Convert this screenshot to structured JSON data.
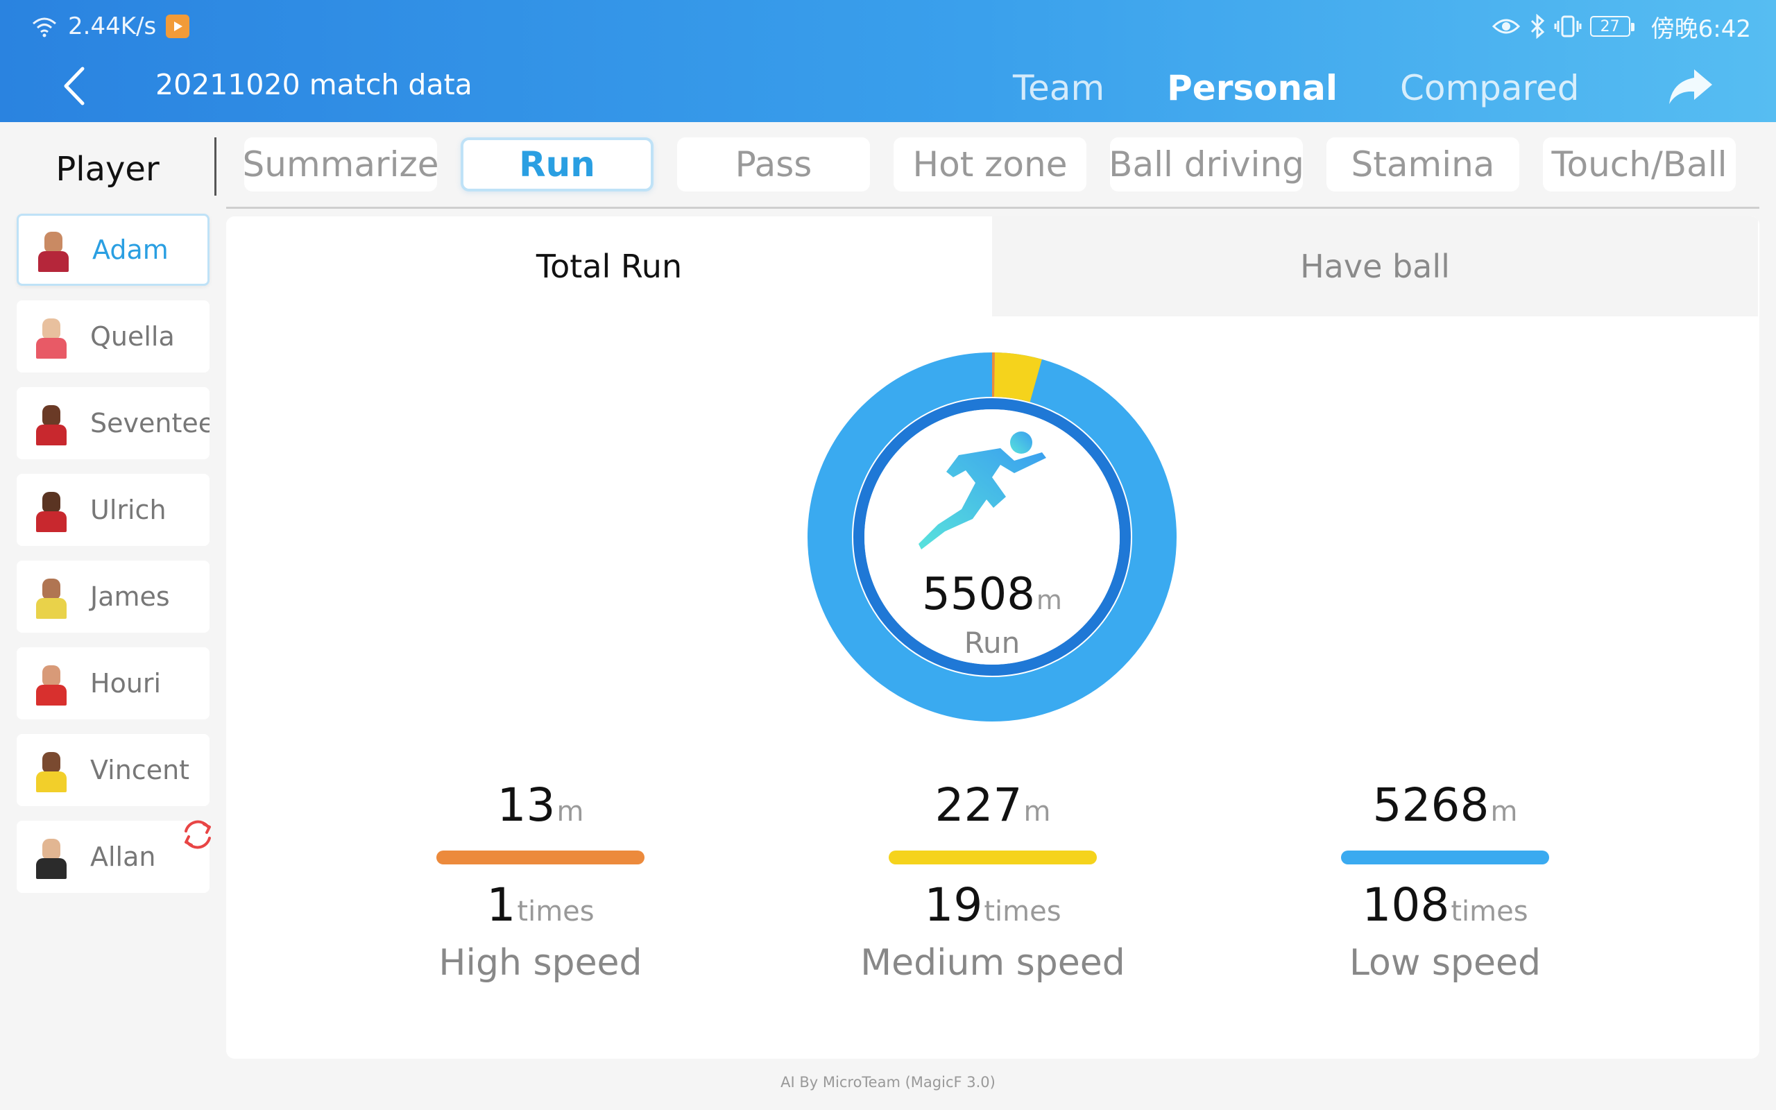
{
  "status_bar": {
    "network_speed": "2.44K/s",
    "battery": "27",
    "time": "傍晚6:42"
  },
  "header": {
    "title": "20211020 match data",
    "tabs": [
      "Team",
      "Personal",
      "Compared"
    ],
    "active_tab": "Personal"
  },
  "player_header": "Player",
  "players": [
    {
      "name": "Adam",
      "active": true,
      "shirt": "#b5263a",
      "skin": "#c98a63"
    },
    {
      "name": "Quella",
      "active": false,
      "shirt": "#e85a66",
      "skin": "#e8c09e"
    },
    {
      "name": "Seventee",
      "active": false,
      "shirt": "#c8282e",
      "skin": "#6a3a26"
    },
    {
      "name": "Ulrich",
      "active": false,
      "shirt": "#c8282e",
      "skin": "#5a3422"
    },
    {
      "name": "James",
      "active": false,
      "shirt": "#e9d24a",
      "skin": "#b07552"
    },
    {
      "name": "Houri",
      "active": false,
      "shirt": "#d8302e",
      "skin": "#d89a78"
    },
    {
      "name": "Vincent",
      "active": false,
      "shirt": "#f2cf2a",
      "skin": "#7a4a30"
    },
    {
      "name": "Allan",
      "active": false,
      "shirt": "#2b2b2b",
      "skin": "#e2b692"
    }
  ],
  "categories": [
    "Summarize",
    "Run",
    "Pass",
    "Hot zone",
    "Ball driving",
    "Stamina",
    "Touch/Ball"
  ],
  "active_category": "Run",
  "sub_tabs": {
    "active": "Total Run",
    "inactive": "Have ball"
  },
  "total_run": {
    "value": "5508",
    "unit": "m",
    "label": "Run"
  },
  "speeds": [
    {
      "distance": "13",
      "distance_unit": "m",
      "times": "1",
      "times_unit": "times",
      "label": "High speed",
      "color": "#ec8a3c"
    },
    {
      "distance": "227",
      "distance_unit": "m",
      "times": "19",
      "times_unit": "times",
      "label": "Medium speed",
      "color": "#f5d31c"
    },
    {
      "distance": "5268",
      "distance_unit": "m",
      "times": "108",
      "times_unit": "times",
      "label": "Low speed",
      "color": "#3aaaf0"
    }
  ],
  "colors": {
    "accent": "#2a9fe2",
    "header_start": "#2a83e0",
    "header_end": "#56bdf2",
    "ring_outer": "#3aaaf0",
    "ring_inner": "#1f78d6",
    "ring_high": "#ec8a3c",
    "ring_medium": "#f5d31c"
  },
  "footer": "AI By MicroTeam (MagicF 3.0)"
}
